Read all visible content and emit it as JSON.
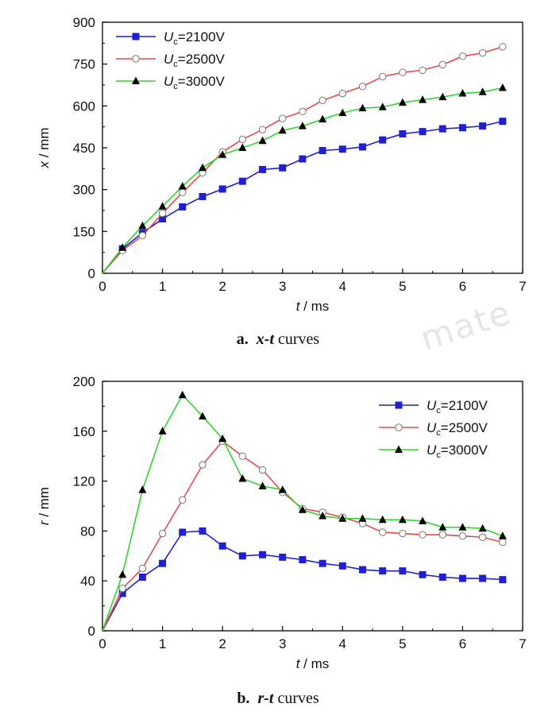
{
  "watermark": "mate",
  "chart_data": [
    {
      "type": "line",
      "panel_letter": "a.",
      "caption_x": "x",
      "caption_t": "t",
      "caption_rest": "curves",
      "xlabel_var": "t",
      "xlabel_unit": " / ms",
      "ylabel_var": "x",
      "ylabel_unit": " / mm",
      "xlim": [
        0,
        7
      ],
      "ylim": [
        0,
        900
      ],
      "xticks": [
        "0",
        "1",
        "2",
        "3",
        "4",
        "5",
        "6",
        "7"
      ],
      "yticks": [
        "0",
        "150",
        "300",
        "450",
        "600",
        "750",
        "900"
      ],
      "legend_position": "top-left",
      "x": [
        0,
        0.333,
        0.667,
        1.0,
        1.333,
        1.667,
        2.0,
        2.333,
        2.667,
        3.0,
        3.333,
        3.667,
        4.0,
        4.333,
        4.667,
        5.0,
        5.333,
        5.667,
        6.0,
        6.333,
        6.667
      ],
      "series": [
        {
          "name_main": "U",
          "name_sub": "c",
          "name_rest": "=2100V",
          "color": "#1f1fd6",
          "marker": "square",
          "values": [
            0,
            88,
            145,
            195,
            238,
            275,
            302,
            330,
            372,
            378,
            410,
            440,
            445,
            453,
            478,
            500,
            508,
            518,
            522,
            528,
            545
          ]
        },
        {
          "name_main": "U",
          "name_sub": "c",
          "name_rest": "=2500V",
          "color": "#e84a4a",
          "marker": "circle",
          "values": [
            0,
            82,
            135,
            215,
            290,
            360,
            435,
            480,
            515,
            555,
            580,
            620,
            645,
            670,
            705,
            720,
            728,
            748,
            778,
            790,
            812
          ]
        },
        {
          "name_main": "U",
          "name_sub": "c",
          "name_rest": "=3000V",
          "color": "#2fd62f",
          "marker": "triangle",
          "values": [
            0,
            92,
            170,
            240,
            312,
            378,
            425,
            450,
            475,
            512,
            528,
            552,
            575,
            592,
            596,
            612,
            622,
            632,
            645,
            650,
            665
          ]
        }
      ]
    },
    {
      "type": "line",
      "panel_letter": "b.",
      "caption_x": "r",
      "caption_t": "t",
      "caption_rest": "curves",
      "xlabel_var": "t",
      "xlabel_unit": " / ms",
      "ylabel_var": "r",
      "ylabel_unit": " / mm",
      "xlim": [
        0,
        7
      ],
      "ylim": [
        0,
        200
      ],
      "xticks": [
        "0",
        "1",
        "2",
        "3",
        "4",
        "5",
        "6",
        "7"
      ],
      "yticks": [
        "0",
        "40",
        "80",
        "120",
        "160",
        "200"
      ],
      "legend_position": "top-right",
      "x": [
        0,
        0.333,
        0.667,
        1.0,
        1.333,
        1.667,
        2.0,
        2.333,
        2.667,
        3.0,
        3.333,
        3.667,
        4.0,
        4.333,
        4.667,
        5.0,
        5.333,
        5.667,
        6.0,
        6.333,
        6.667
      ],
      "series": [
        {
          "name_main": "U",
          "name_sub": "c",
          "name_rest": "=2100V",
          "color": "#1f1fd6",
          "marker": "square",
          "values": [
            0,
            30,
            43,
            54,
            79,
            80,
            68,
            60,
            61,
            59,
            57,
            54,
            52,
            49,
            48,
            48,
            45,
            43,
            42,
            42,
            41
          ]
        },
        {
          "name_main": "U",
          "name_sub": "c",
          "name_rest": "=2500V",
          "color": "#e84a4a",
          "marker": "circle",
          "values": [
            0,
            34,
            50,
            78,
            105,
            133,
            152,
            140,
            129,
            111,
            98,
            95,
            91,
            86,
            79,
            78,
            77,
            77,
            76,
            75,
            71
          ]
        },
        {
          "name_main": "U",
          "name_sub": "c",
          "name_rest": "=3000V",
          "color": "#2fd62f",
          "marker": "triangle",
          "values": [
            0,
            45,
            113,
            160,
            189,
            172,
            154,
            122,
            116,
            113,
            97,
            92,
            90,
            90,
            89,
            89,
            88,
            83,
            83,
            82,
            76
          ]
        }
      ]
    }
  ]
}
